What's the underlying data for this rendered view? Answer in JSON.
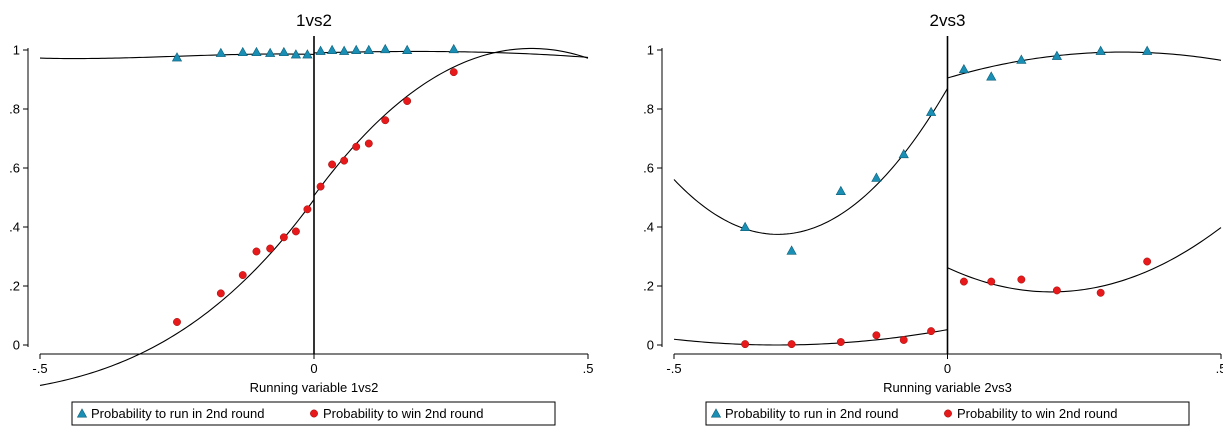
{
  "chart_data": [
    {
      "type": "scatter",
      "title": "1vs2",
      "xlabel": "Running variable 1vs2",
      "ylabel": "",
      "xlim": [
        -0.5,
        0.5
      ],
      "ylim": [
        0,
        1
      ],
      "xticks": [
        {
          "v": -0.5,
          "label": "-.5"
        },
        {
          "v": 0,
          "label": "0"
        },
        {
          "v": 0.5,
          "label": ".5"
        }
      ],
      "yticks": [
        {
          "v": 0,
          "label": "0"
        },
        {
          "v": 0.2,
          "label": ".2"
        },
        {
          "v": 0.4,
          "label": ".4"
        },
        {
          "v": 0.6,
          "label": ".6"
        },
        {
          "v": 0.8,
          "label": ".8"
        },
        {
          "v": 1,
          "label": "1"
        }
      ],
      "cutoff": 0,
      "grid": false,
      "legend_position": "bottom",
      "series": [
        {
          "name": "Probability to run in 2nd round",
          "marker": "triangle",
          "color": "#1a8fb5",
          "x": [
            -0.25,
            -0.17,
            -0.13,
            -0.105,
            -0.08,
            -0.055,
            -0.033,
            -0.012,
            0.012,
            0.033,
            0.055,
            0.077,
            0.1,
            0.13,
            0.17,
            0.255
          ],
          "y": [
            0.975,
            0.99,
            0.993,
            0.993,
            0.99,
            0.993,
            0.985,
            0.985,
            0.997,
            1.0,
            0.997,
            1.0,
            1.0,
            1.003,
            1.0,
            1.003
          ]
        },
        {
          "name": "Probability to win 2nd round",
          "marker": "circle",
          "color": "#e8191a",
          "x": [
            -0.25,
            -0.17,
            -0.13,
            -0.105,
            -0.08,
            -0.055,
            -0.033,
            -0.012,
            0.012,
            0.033,
            0.055,
            0.077,
            0.1,
            0.13,
            0.17,
            0.255
          ],
          "y": [
            0.078,
            0.175,
            0.237,
            0.317,
            0.327,
            0.365,
            0.385,
            0.46,
            0.537,
            0.612,
            0.625,
            0.672,
            0.683,
            0.762,
            0.827,
            0.925
          ]
        }
      ],
      "fits": [
        {
          "name": "fit-run-left",
          "type": "poly",
          "x_range": [
            -0.5,
            0
          ],
          "coef": [
            0.985,
            -0.05,
            -0.45,
            -0.6
          ]
        },
        {
          "name": "fit-run-right",
          "type": "poly",
          "x_range": [
            0,
            0.5
          ],
          "coef": [
            0.99,
            0.05,
            -0.1,
            -0.12
          ]
        },
        {
          "name": "fit-win-left",
          "type": "poly",
          "x_range": [
            -0.5,
            0
          ],
          "coef": [
            0.493,
            2.56,
            3.35,
            1.5
          ]
        },
        {
          "name": "fit-win-right",
          "type": "poly",
          "x_range": [
            0,
            0.5
          ],
          "coef": [
            0.506,
            2.54,
            -3.29,
            0.15
          ]
        }
      ]
    },
    {
      "type": "scatter",
      "title": "2vs3",
      "xlabel": "Running variable 2vs3",
      "ylabel": "",
      "xlim": [
        -0.5,
        0.5
      ],
      "ylim": [
        0,
        1
      ],
      "xticks": [
        {
          "v": -0.5,
          "label": "-.5"
        },
        {
          "v": 0,
          "label": "0"
        },
        {
          "v": 0.5,
          "label": ".5"
        }
      ],
      "yticks": [
        {
          "v": 0,
          "label": "0"
        },
        {
          "v": 0.2,
          "label": ".2"
        },
        {
          "v": 0.4,
          "label": ".4"
        },
        {
          "v": 0.6,
          "label": ".6"
        },
        {
          "v": 0.8,
          "label": ".8"
        },
        {
          "v": 1,
          "label": "1"
        }
      ],
      "cutoff": 0,
      "grid": false,
      "legend_position": "bottom",
      "series": [
        {
          "name": "Probability to run in 2nd round",
          "marker": "triangle",
          "color": "#1a8fb5",
          "x": [
            -0.37,
            -0.285,
            -0.195,
            -0.13,
            -0.08,
            -0.03,
            0.03,
            0.08,
            0.135,
            0.2,
            0.28,
            0.365
          ],
          "y": [
            0.4,
            0.32,
            0.522,
            0.567,
            0.647,
            0.79,
            0.935,
            0.91,
            0.967,
            0.98,
            0.997,
            0.997
          ]
        },
        {
          "name": "Probability to win 2nd round",
          "marker": "circle",
          "color": "#e8191a",
          "x": [
            -0.37,
            -0.285,
            -0.195,
            -0.13,
            -0.08,
            -0.03,
            0.03,
            0.08,
            0.135,
            0.2,
            0.28,
            0.365
          ],
          "y": [
            0.003,
            0.003,
            0.01,
            0.033,
            0.017,
            0.047,
            0.215,
            0.215,
            0.222,
            0.185,
            0.177,
            0.283
          ]
        }
      ],
      "fits": [
        {
          "name": "fit-run-left",
          "type": "quad",
          "x_range": [
            -0.5,
            0
          ],
          "vertex": [
            -0.31,
            0.375
          ],
          "anchor": [
            0,
            0.87
          ]
        },
        {
          "name": "fit-run-right",
          "type": "quad",
          "x_range": [
            0,
            0.5
          ],
          "vertex": [
            0.32,
            0.993
          ],
          "anchor": [
            0,
            0.905
          ]
        },
        {
          "name": "fit-win-left",
          "type": "quad",
          "x_range": [
            -0.5,
            0
          ],
          "vertex": [
            -0.31,
            0.0
          ],
          "anchor": [
            0,
            0.052
          ]
        },
        {
          "name": "fit-win-right",
          "type": "quad",
          "x_range": [
            0,
            0.5
          ],
          "vertex": [
            0.19,
            0.18
          ],
          "anchor": [
            0,
            0.262
          ]
        }
      ]
    }
  ]
}
